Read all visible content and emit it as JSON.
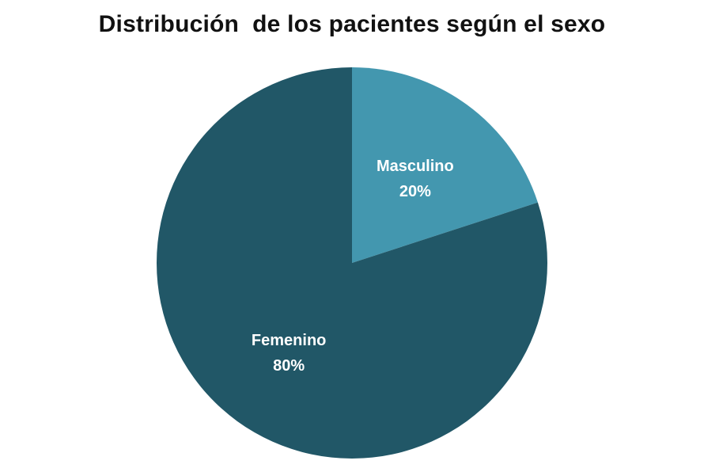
{
  "chart_data": {
    "type": "pie",
    "title": "Distribución  de los pacientes según el sexo",
    "slices": [
      {
        "label": "Masculino",
        "value": 20,
        "value_label": "20%",
        "color": "#4397AF"
      },
      {
        "label": "Femenino",
        "value": 80,
        "value_label": "80%",
        "color": "#215767"
      }
    ],
    "start_angle_deg": 0,
    "direction": "clockwise",
    "legend": "none",
    "data_labels": "inside"
  }
}
